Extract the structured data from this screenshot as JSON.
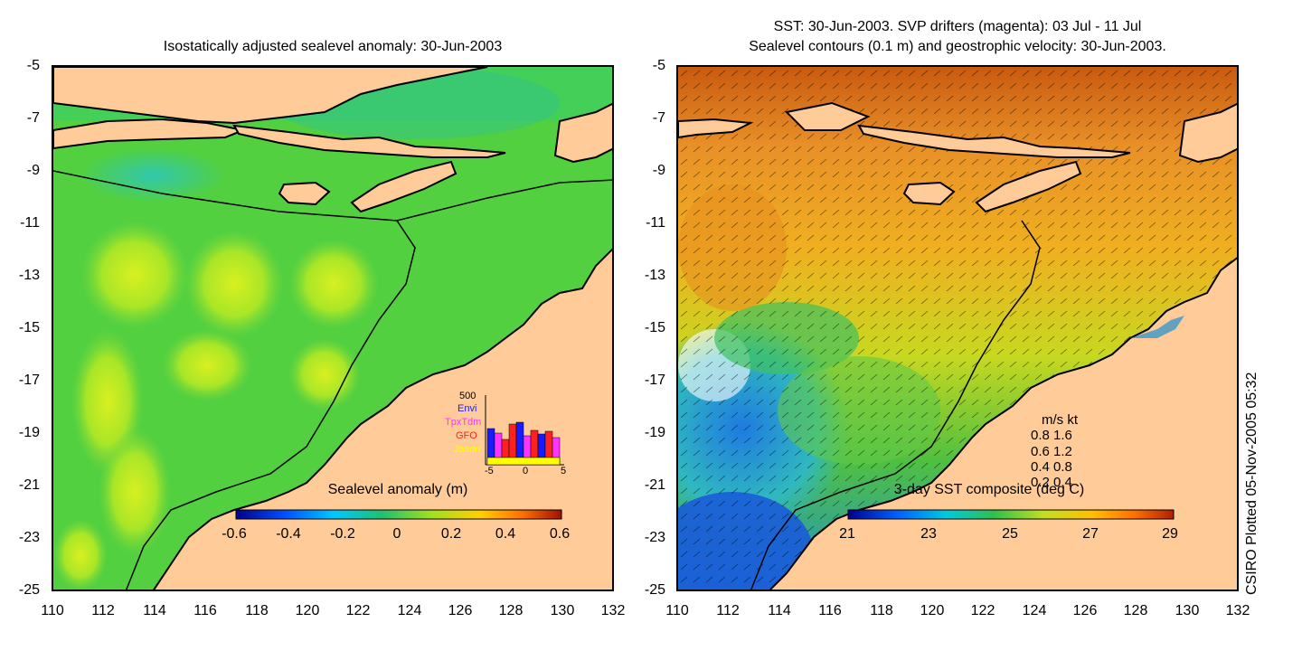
{
  "left": {
    "title": "Isostatically adjusted sealevel anomaly: 30-Jun-2003",
    "yticks": [
      "-5",
      "-7",
      "-9",
      "-11",
      "-13",
      "-15",
      "-17",
      "-19",
      "-21",
      "-23",
      "-25"
    ],
    "xticks": [
      "110",
      "112",
      "114",
      "116",
      "118",
      "120",
      "122",
      "124",
      "126",
      "128",
      "130",
      "132"
    ],
    "colorbar": {
      "title": "Sealevel anomaly (m)",
      "labels": [
        "-0.6",
        "-0.4",
        "-0.2",
        "0",
        "0.2",
        "0.4",
        "0.6"
      ]
    },
    "inset": {
      "ymax_label": "500",
      "legend": [
        {
          "name": "Envi",
          "color": "#1a1aff"
        },
        {
          "name": "TpxTdm",
          "color": "#ff33ff"
        },
        {
          "name": "GFO",
          "color": "#ff2020"
        },
        {
          "name": "Jason",
          "color": "#ffff00"
        }
      ],
      "xlabels": [
        "-5",
        "0",
        "5"
      ]
    }
  },
  "right": {
    "title_line1": "SST: 30-Jun-2003. SVP drifters (magenta): 03 Jul - 11 Jul",
    "title_line2": "Sealevel contours (0.1 m) and geostrophic velocity: 30-Jun-2003.",
    "yticks": [
      "-5",
      "-7",
      "-9",
      "-11",
      "-13",
      "-15",
      "-17",
      "-19",
      "-21",
      "-23",
      "-25"
    ],
    "xticks": [
      "110",
      "112",
      "114",
      "116",
      "118",
      "120",
      "122",
      "124",
      "126",
      "128",
      "130",
      "132"
    ],
    "colorbar": {
      "title": "3-day SST composite (deg C)",
      "labels": [
        "21",
        "23",
        "25",
        "27",
        "29"
      ]
    },
    "velocity_key": {
      "header": "m/s  kt",
      "rows": [
        "0.8  1.6",
        "0.6  1.2",
        "0.4  0.8",
        "0.2  0.4"
      ]
    }
  },
  "stamp": "CSIRO Plotted 05-Nov-2005 05:32",
  "colors": {
    "land": "#ffcc99",
    "sla_base": "#4cd444",
    "sst_warm": "#f0a020",
    "sst_cool": "#3cb84c",
    "coast": "#000000"
  }
}
